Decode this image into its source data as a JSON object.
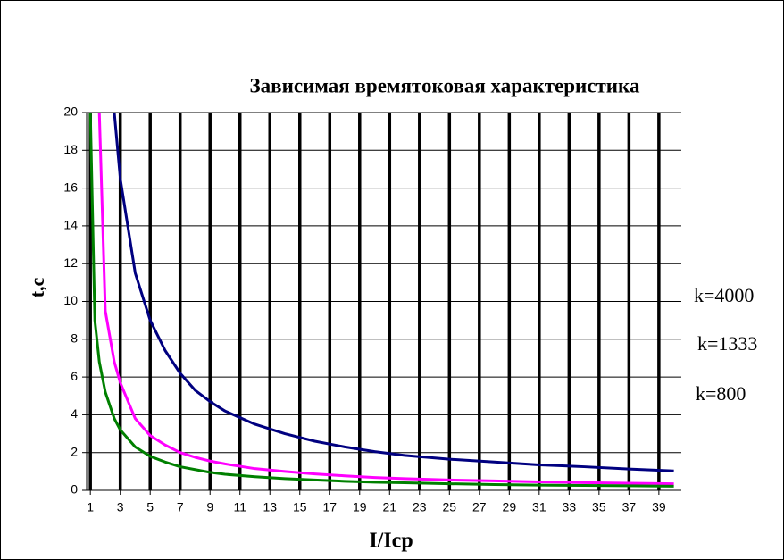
{
  "chart_data": {
    "type": "line",
    "title": "Зависимая времятоковая характеристика",
    "x_label": "I/Icp",
    "y_label": "t,c",
    "annotations": [
      "k=4000",
      "k=1333",
      "k=800"
    ],
    "x": [
      1,
      1.3,
      1.6,
      2,
      2.6,
      3,
      4,
      5,
      6,
      7,
      8,
      9,
      10,
      12,
      14,
      16,
      18,
      20,
      22,
      25,
      28,
      31,
      34,
      37,
      40
    ],
    "series": [
      {
        "color": "#000080",
        "values": [
          null,
          null,
          null,
          null,
          20,
          16.5,
          11.5,
          9,
          7.4,
          6.2,
          5.3,
          4.7,
          4.2,
          3.5,
          3.0,
          2.6,
          2.3,
          2.05,
          1.85,
          1.65,
          1.5,
          1.35,
          1.25,
          1.13,
          1.03
        ]
      },
      {
        "color": "#ff00ff",
        "values": [
          null,
          null,
          20,
          9.5,
          6.8,
          5.7,
          3.8,
          2.9,
          2.4,
          2.0,
          1.75,
          1.55,
          1.4,
          1.15,
          1.0,
          0.87,
          0.77,
          0.68,
          0.62,
          0.55,
          0.5,
          0.45,
          0.41,
          0.38,
          0.35
        ]
      },
      {
        "color": "#008000",
        "values": [
          20,
          9,
          6.8,
          5.2,
          3.8,
          3.2,
          2.3,
          1.8,
          1.5,
          1.25,
          1.1,
          0.95,
          0.85,
          0.72,
          0.62,
          0.55,
          0.48,
          0.43,
          0.4,
          0.35,
          0.31,
          0.28,
          0.26,
          0.24,
          0.22
        ]
      }
    ],
    "xlim": [
      0.75,
      40.5
    ],
    "xticks": [
      1,
      3,
      5,
      7,
      9,
      11,
      13,
      15,
      17,
      19,
      21,
      23,
      25,
      27,
      29,
      31,
      33,
      35,
      37,
      39
    ],
    "ylim": [
      0,
      20
    ],
    "yticks": [
      0,
      2,
      4,
      6,
      8,
      10,
      12,
      14,
      16,
      18,
      20
    ],
    "grid": true
  }
}
